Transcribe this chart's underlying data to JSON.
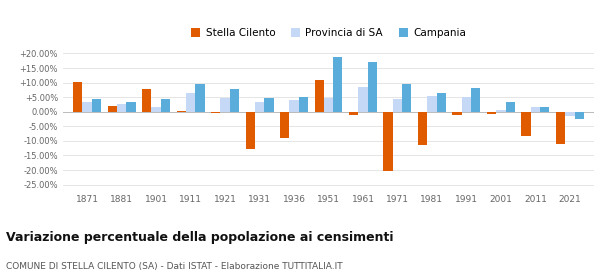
{
  "years": [
    1871,
    1881,
    1901,
    1911,
    1921,
    1931,
    1936,
    1951,
    1961,
    1971,
    1981,
    1991,
    2001,
    2011,
    2021
  ],
  "stella_cilento": [
    10.2,
    2.0,
    7.7,
    0.3,
    -0.5,
    -12.8,
    -9.0,
    11.0,
    -1.2,
    -20.5,
    -11.5,
    -1.2,
    -0.8,
    -8.5,
    -11.2
  ],
  "provincia_sa": [
    3.2,
    2.8,
    1.5,
    6.5,
    4.8,
    3.5,
    4.0,
    4.8,
    8.5,
    4.5,
    5.5,
    5.0,
    0.7,
    1.5,
    -1.5
  ],
  "campania": [
    4.5,
    3.2,
    4.5,
    9.5,
    7.8,
    4.8,
    5.2,
    18.8,
    17.0,
    9.5,
    6.5,
    8.0,
    3.2,
    1.5,
    -2.5
  ],
  "color_stella": "#e05a00",
  "color_provincia": "#c5d8f5",
  "color_campania": "#5aadda",
  "title": "Variazione percentuale della popolazione ai censimenti",
  "subtitle": "COMUNE DI STELLA CILENTO (SA) - Dati ISTAT - Elaborazione TUTTITALIA.IT",
  "ylim": [
    -27,
    22
  ],
  "yticks": [
    -25,
    -20,
    -15,
    -10,
    -5,
    0,
    5,
    10,
    15,
    20
  ],
  "ytick_labels": [
    "-25.00%",
    "-20.00%",
    "-15.00%",
    "-10.00%",
    "-5.00%",
    "0.00%",
    "+5.00%",
    "+10.00%",
    "+15.00%",
    "+20.00%"
  ]
}
